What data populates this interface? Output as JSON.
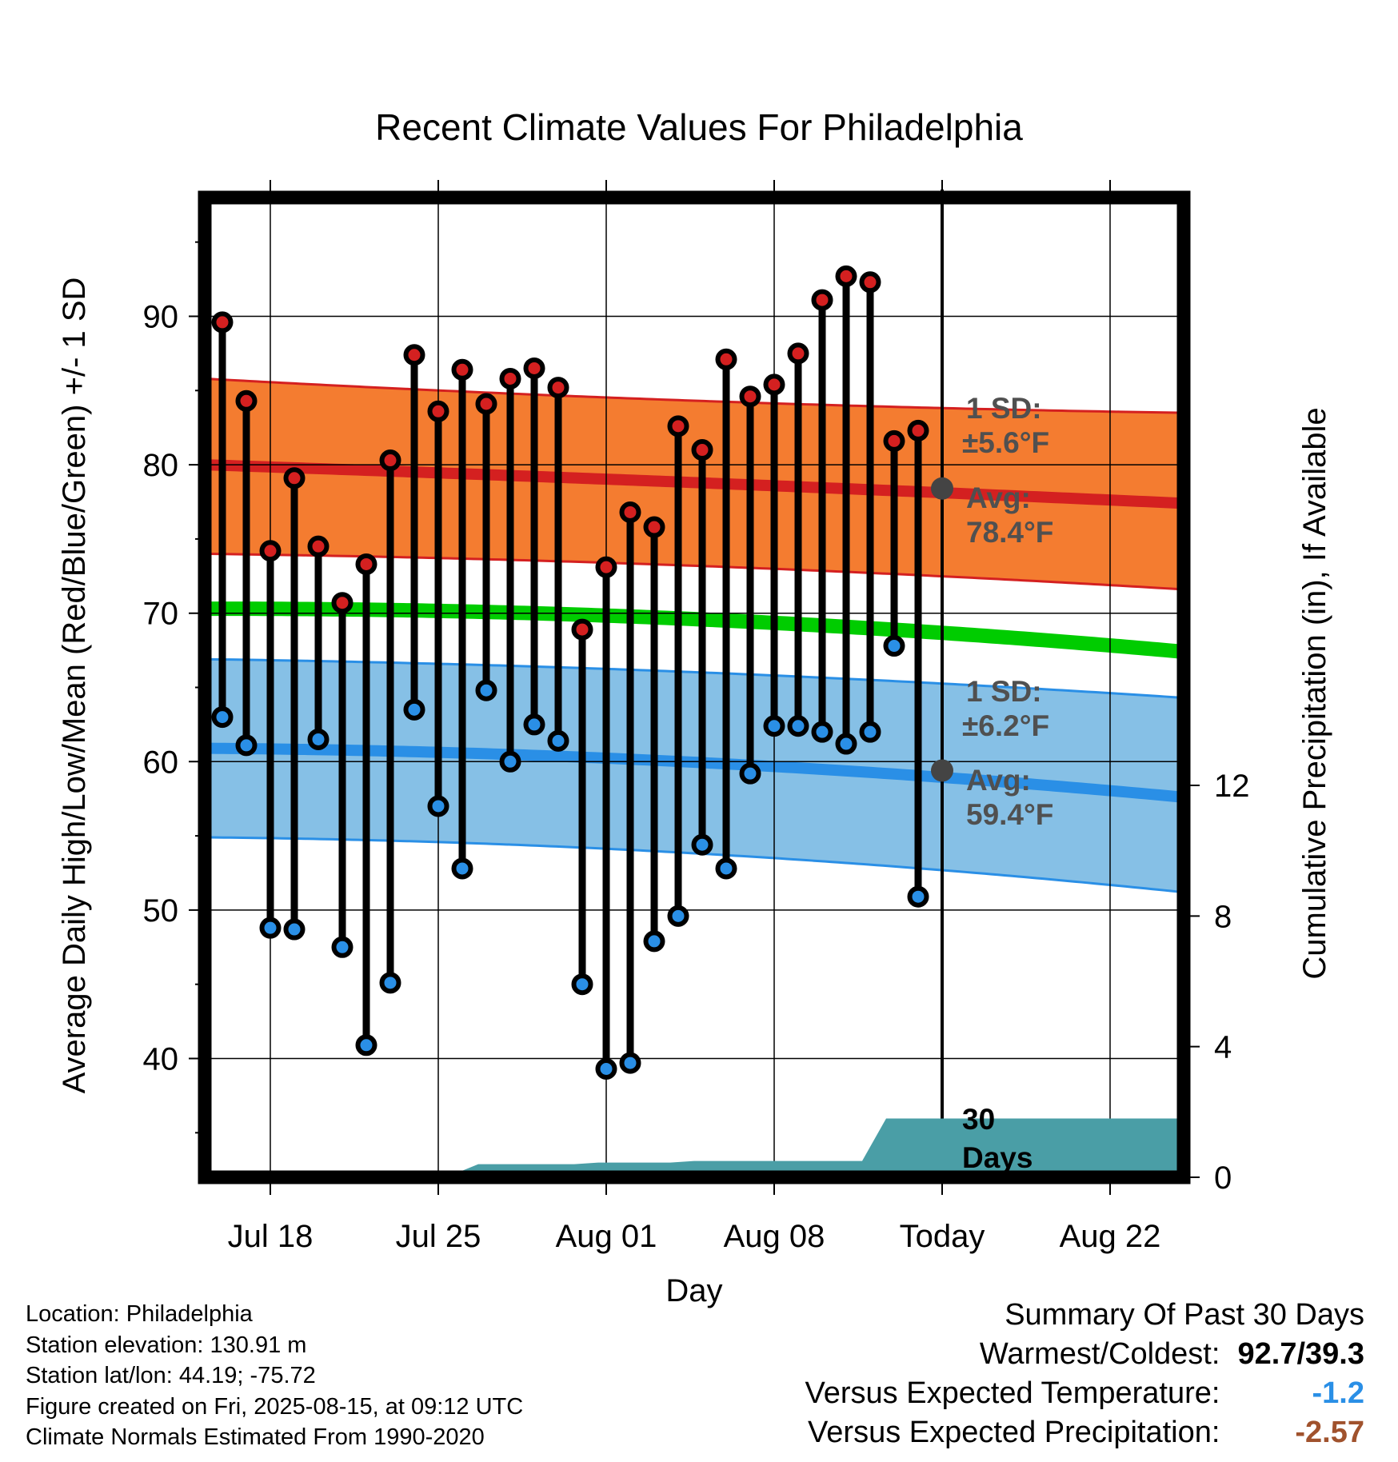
{
  "chart_data": {
    "type": "line",
    "title": "Recent Climate Values For Philadelphia",
    "xlabel": "Day",
    "ylabel_left": "Average Daily High/Low/Mean (Red/Blue/Green) +/- 1 SD",
    "ylabel_right": "Cumulative Precipitation (in), If Available",
    "x_ticks": [
      "Jul 18",
      "Jul 25",
      "Aug 01",
      "Aug 08",
      "Today",
      "Aug 22"
    ],
    "ylim_left": [
      32,
      98
    ],
    "y_ticks_left": [
      40,
      50,
      60,
      70,
      80,
      90
    ],
    "ylim_right": [
      0,
      30
    ],
    "y_ticks_right": [
      0,
      4,
      8,
      12
    ],
    "days": [
      "Jul 16",
      "Jul 17",
      "Jul 18",
      "Jul 19",
      "Jul 20",
      "Jul 21",
      "Jul 22",
      "Jul 23",
      "Jul 24",
      "Jul 25",
      "Jul 26",
      "Jul 27",
      "Jul 28",
      "Jul 29",
      "Jul 30",
      "Jul 31",
      "Aug 01",
      "Aug 02",
      "Aug 03",
      "Aug 04",
      "Aug 05",
      "Aug 06",
      "Aug 07",
      "Aug 08",
      "Aug 09",
      "Aug 10",
      "Aug 11",
      "Aug 12",
      "Aug 13",
      "Aug 14"
    ],
    "series": [
      {
        "name": "High",
        "color": "#d42020",
        "values": [
          89.6,
          84.3,
          74.2,
          79.1,
          74.5,
          70.7,
          73.3,
          80.3,
          87.4,
          83.6,
          86.4,
          84.1,
          85.8,
          86.5,
          85.2,
          68.9,
          73.1,
          76.8,
          75.8,
          82.6,
          81.0,
          87.1,
          84.6,
          85.4,
          87.5,
          91.1,
          92.7,
          92.3,
          81.6,
          82.3
        ]
      },
      {
        "name": "Low",
        "color": "#2a8fe6",
        "values": [
          63.0,
          61.1,
          48.8,
          48.7,
          61.5,
          47.5,
          40.9,
          45.1,
          63.5,
          57.0,
          52.8,
          64.8,
          60.0,
          62.5,
          61.4,
          45.0,
          39.3,
          39.7,
          47.9,
          49.6,
          54.4,
          52.8,
          59.2,
          62.4,
          62.4,
          62.0,
          61.2,
          62.0,
          67.8,
          50.9
        ]
      }
    ],
    "normals": {
      "high_avg": [
        80.0,
        78.4,
        77.4
      ],
      "high_sd_upper": [
        85.8,
        84.0,
        83.5
      ],
      "high_sd_lower": [
        74.0,
        72.8,
        71.6
      ],
      "mean": [
        70.3,
        69.1,
        67.4
      ],
      "low_avg": [
        60.9,
        59.4,
        57.6
      ],
      "low_sd_upper": [
        66.9,
        65.6,
        64.3
      ],
      "low_sd_lower": [
        54.9,
        53.2,
        51.2
      ],
      "colors": {
        "high_band": "#f47c30",
        "high_line": "#d42020",
        "mean_line": "#00cc00",
        "low_band": "#86c0e6",
        "low_line": "#2a8fe6",
        "precip": "#4a9ea6"
      }
    },
    "precip_cumulative": [
      0.0,
      0.0,
      0.0,
      0.0,
      0.1,
      0.1,
      0.1,
      0.1,
      0.1,
      0.1,
      0.1,
      0.4,
      0.4,
      0.4,
      0.4,
      0.4,
      0.45,
      0.45,
      0.45,
      0.45,
      0.5,
      0.5,
      0.5,
      0.5,
      0.5,
      0.5,
      0.5,
      0.5,
      1.8,
      1.8,
      1.8
    ],
    "annotations": {
      "high_sd_label": "1 SD:",
      "high_sd_value": "±5.6°F",
      "high_avg_label": "Avg:",
      "high_avg_value": "78.4°F",
      "low_sd_label": "1 SD:",
      "low_sd_value": "±6.2°F",
      "low_avg_label": "Avg:",
      "low_avg_value": "59.4°F",
      "days_number": "30",
      "days_word": "Days"
    }
  },
  "info": {
    "location": "Location: Philadelphia",
    "elevation": "Station elevation: 130.91 m",
    "latlon": "Station lat/lon: 44.19; -75.72",
    "created": "Figure created on Fri, 2025-08-15, at 09:12 UTC",
    "normals": "Climate Normals Estimated From 1990-2020"
  },
  "summary": {
    "heading": "Summary Of Past 30 Days",
    "warmest_label": "Warmest/Coldest:",
    "warmest_value": "92.7/39.3",
    "temp_label": "Versus Expected Temperature:",
    "temp_value": "-1.2",
    "temp_color": "#2a8fe6",
    "precip_label": "Versus Expected Precipitation:",
    "precip_value": "-2.57",
    "precip_color": "#a0522d"
  }
}
